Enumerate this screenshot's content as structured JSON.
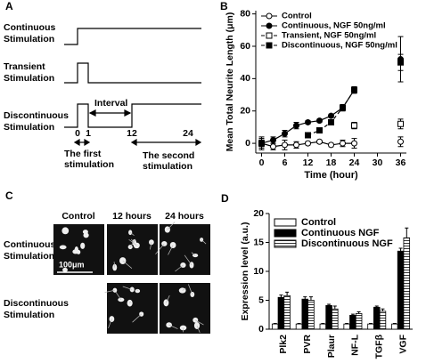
{
  "panel_a": {
    "label": "A",
    "rows": [
      [
        "Continuous",
        "Stimulation"
      ],
      [
        "Transient",
        "Stimulation"
      ],
      [
        "Discontinuous",
        "Stimulation"
      ]
    ],
    "interval": "Interval",
    "ticks": [
      "0",
      "1",
      "12",
      "24"
    ],
    "first": [
      "The first",
      "stimulation"
    ],
    "second": [
      "The second",
      "stimulation"
    ]
  },
  "panel_c": {
    "label": "C",
    "columns": [
      "Control",
      "12 hours",
      "24 hours"
    ],
    "rows": [
      [
        "Continuous",
        "Stimulation"
      ],
      [
        "Discontinuous",
        "Stimulation"
      ]
    ],
    "scale_bar": "100μm"
  },
  "chart_data": [
    {
      "type": "line",
      "panel_label": "B",
      "x_label": "Time (hour)",
      "y_label": "Mean Total Neurite Length (μm)",
      "x": [
        0,
        3,
        6,
        9,
        12,
        15,
        18,
        21,
        24,
        30,
        36
      ],
      "xlim": [
        -1.5,
        37.5
      ],
      "xticks": [
        0,
        6,
        12,
        18,
        24,
        30,
        36
      ],
      "ylim": [
        -6,
        82
      ],
      "yticks": [
        0,
        20,
        40,
        60,
        80
      ],
      "legend": "upper left",
      "series": [
        {
          "name": "Control",
          "color": "#000000",
          "marker": "open-circle",
          "dash": false,
          "values": [
            0,
            -2,
            -1,
            -1,
            0,
            1,
            -1,
            0,
            0,
            null,
            1
          ],
          "errors": [
            4,
            2,
            3,
            2,
            1,
            1,
            1,
            2,
            3,
            null,
            3
          ]
        },
        {
          "name": "Continuous, NGF 50ng/ml",
          "color": "#000000",
          "marker": "filled-circle",
          "dash": false,
          "values": [
            0,
            2,
            6,
            11,
            13,
            14,
            17,
            22,
            33,
            null,
            52
          ],
          "errors": [
            3,
            2,
            2,
            2,
            1,
            1,
            1,
            2,
            2,
            null,
            14
          ]
        },
        {
          "name": "Transient, NGF 50ng/ml",
          "color": "#000000",
          "marker": "open-square",
          "dash": true,
          "values": [
            0,
            null,
            null,
            null,
            null,
            null,
            null,
            null,
            11,
            null,
            12
          ],
          "errors": [
            2,
            null,
            null,
            null,
            null,
            null,
            null,
            null,
            2,
            null,
            3
          ]
        },
        {
          "name": "Discontinuous, NGF 50ng/ml",
          "color": "#000000",
          "marker": "filled-square",
          "dash": true,
          "values": [
            0,
            null,
            null,
            null,
            5,
            8,
            13,
            22,
            33,
            null,
            50
          ],
          "errors": [
            3,
            null,
            null,
            null,
            1,
            1,
            1,
            1,
            2,
            null,
            5
          ]
        }
      ]
    },
    {
      "type": "bar",
      "panel_label": "D",
      "y_label": "Expression level (a.u.)",
      "categories": [
        "Plk2",
        "PVR",
        "Plaur",
        "NF-L",
        "TGFβ",
        "VGF"
      ],
      "ylim": [
        0,
        20
      ],
      "yticks": [
        0,
        5,
        10,
        15,
        20
      ],
      "legend": "upper left",
      "series": [
        {
          "name": "Control",
          "color": "#ffffff",
          "pattern": "none",
          "values": [
            0.9,
            0.9,
            0.9,
            0.9,
            0.9,
            0.9
          ],
          "errors": [
            0.1,
            0.1,
            0.1,
            0.1,
            0.1,
            0.1
          ]
        },
        {
          "name": "Continuous NGF",
          "color": "#000000",
          "pattern": "none",
          "values": [
            5.5,
            5.2,
            4.1,
            2.4,
            3.8,
            13.5
          ],
          "errors": [
            0.4,
            0.4,
            0.2,
            0.2,
            0.2,
            0.5
          ]
        },
        {
          "name": "Discontinuous NGF",
          "color": "#ffffff",
          "pattern": "horizontal-stripes",
          "values": [
            5.8,
            5.0,
            3.5,
            2.7,
            3.1,
            15.8
          ],
          "errors": [
            0.6,
            0.6,
            0.5,
            0.3,
            0.4,
            1.7
          ]
        }
      ]
    }
  ]
}
